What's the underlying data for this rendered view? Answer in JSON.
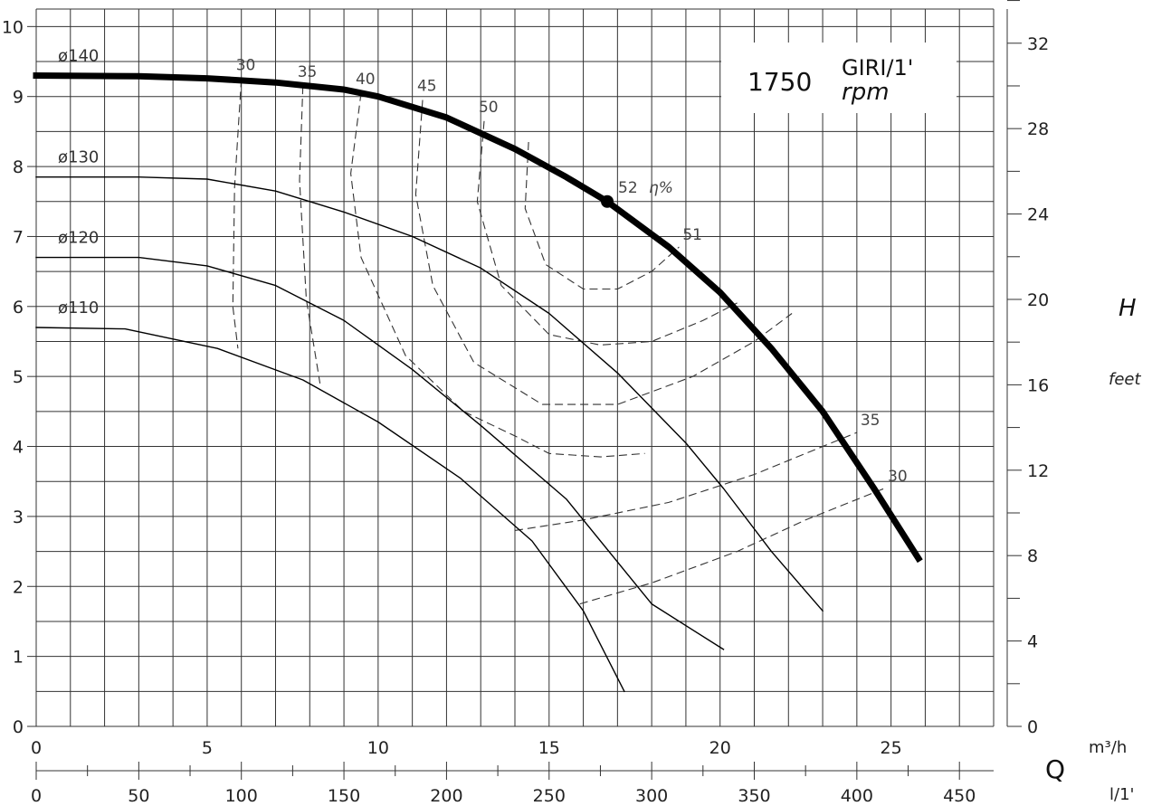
{
  "chart_data": {
    "type": "line",
    "speed_box": {
      "value": "1750",
      "unit_top": "GIRI/1'",
      "unit_bottom": "rpm"
    },
    "xlabel": "Q",
    "x_unit_top": "m³/h",
    "x_unit_bottom": "l/1'",
    "ylabel_right": "H",
    "y_unit_right": "feet",
    "efficiency_label": "η%",
    "xlim_m3h": [
      0,
      28
    ],
    "xlim_lmin": [
      0,
      466.67
    ],
    "ylim_m": [
      0,
      10.25
    ],
    "ylim_ft": [
      0,
      33.6
    ],
    "xticks_m3h": [
      "0",
      "5",
      "10",
      "15",
      "20",
      "25"
    ],
    "xticks_lmin": [
      "0",
      "50",
      "100",
      "150",
      "200",
      "250",
      "300",
      "350",
      "400",
      "450"
    ],
    "yticks_m": [
      "0",
      "1",
      "2",
      "3",
      "4",
      "5",
      "6",
      "7",
      "8",
      "9",
      "10"
    ],
    "yticks_ft": [
      "0",
      "4",
      "8",
      "12",
      "16",
      "20",
      "24",
      "28",
      "32"
    ],
    "series": [
      {
        "name": "ø140",
        "bold": true,
        "x": [
          0,
          3,
          5,
          7,
          9,
          10,
          12,
          14,
          15.5,
          16.7,
          18.5,
          20,
          21.5,
          23,
          24.5,
          25.8
        ],
        "y": [
          9.3,
          9.29,
          9.26,
          9.2,
          9.1,
          9.0,
          8.7,
          8.25,
          7.85,
          7.5,
          6.85,
          6.2,
          5.4,
          4.5,
          3.4,
          2.4
        ]
      },
      {
        "name": "ø130",
        "x": [
          0,
          3,
          5,
          7,
          9,
          11,
          13,
          15,
          17,
          19,
          20.1,
          21.5,
          23
        ],
        "y": [
          7.85,
          7.85,
          7.82,
          7.65,
          7.35,
          7.0,
          6.55,
          5.9,
          5.05,
          4.05,
          3.4,
          2.5,
          1.65
        ]
      },
      {
        "name": "ø120",
        "x": [
          0,
          3,
          5,
          7,
          9,
          11,
          13,
          15.5,
          18,
          20.1
        ],
        "y": [
          6.7,
          6.7,
          6.58,
          6.3,
          5.8,
          5.1,
          4.3,
          3.25,
          1.75,
          1.1
        ]
      },
      {
        "name": "ø110",
        "x": [
          0,
          2.6,
          5.3,
          7.8,
          10,
          12.4,
          14.5,
          16,
          17.2
        ],
        "y": [
          5.7,
          5.68,
          5.4,
          4.95,
          4.35,
          3.55,
          2.65,
          1.65,
          0.5
        ]
      }
    ],
    "bep": {
      "label": "52",
      "x": 16.7,
      "y": 7.5
    },
    "efficiency_curves": [
      {
        "label": "30",
        "x": [
          6.0,
          5.8,
          5.75,
          5.9
        ],
        "y": [
          9.25,
          7.7,
          6.0,
          5.4
        ]
      },
      {
        "label": "35",
        "x": [
          7.8,
          7.7,
          7.9,
          8.3
        ],
        "y": [
          9.15,
          7.8,
          6.1,
          4.9
        ]
      },
      {
        "label": "40",
        "x": [
          9.5,
          9.2,
          9.5,
          10.8,
          12.5,
          14.0,
          15.0,
          16.5,
          17.8
        ],
        "y": [
          9.05,
          7.9,
          6.7,
          5.3,
          4.5,
          4.15,
          3.9,
          3.85,
          3.9
        ]
      },
      {
        "label": "45",
        "x": [
          11.3,
          11.1,
          11.6,
          12.8,
          14.8,
          17.0,
          19.2,
          21.0,
          22.1
        ],
        "y": [
          8.95,
          7.6,
          6.3,
          5.2,
          4.6,
          4.6,
          5.0,
          5.5,
          5.9
        ]
      },
      {
        "label": "50",
        "x": [
          13.1,
          12.9,
          13.6,
          15.0,
          16.5,
          18.0,
          19.5,
          20.5
        ],
        "y": [
          8.65,
          7.5,
          6.3,
          5.6,
          5.45,
          5.5,
          5.8,
          6.05
        ]
      },
      {
        "label": "51",
        "x": [
          14.4,
          14.3,
          14.9,
          16.0,
          17.0,
          18.0,
          18.8
        ],
        "y": [
          8.35,
          7.4,
          6.6,
          6.25,
          6.25,
          6.5,
          6.85
        ]
      },
      {
        "label": "35",
        "x": [
          14.0,
          16.0,
          18.5,
          21.0,
          24.0
        ],
        "y": [
          2.8,
          2.95,
          3.2,
          3.6,
          4.2
        ]
      },
      {
        "label": "30",
        "x": [
          15.9,
          18.0,
          20.5,
          22.5,
          24.8
        ],
        "y": [
          1.75,
          2.05,
          2.5,
          2.95,
          3.4
        ]
      }
    ],
    "grid": true
  }
}
